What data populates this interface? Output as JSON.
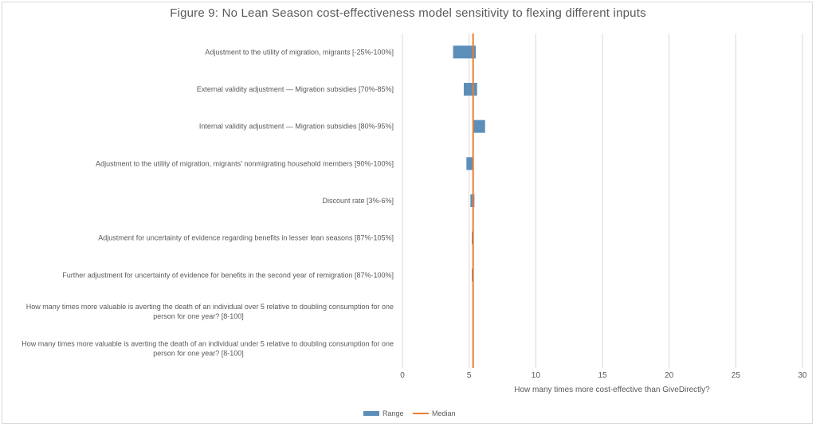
{
  "chart_data": {
    "type": "bar",
    "title": "Figure 9: No Lean Season cost-effectiveness model sensitivity to flexing different inputs",
    "xlabel": "How many times more cost-effective  than GiveDirectly?",
    "xlim": [
      0,
      30
    ],
    "xticks": [
      "0",
      "5",
      "10",
      "15",
      "20",
      "25",
      "30"
    ],
    "median": 5.3,
    "categories": [
      "Adjustment to the utility of migration, migrants [-25%-100%]",
      "External validity adjustment — Migration subsidies [70%-85%]",
      "Internal validity adjustment — Migration subsidies [80%-95%]",
      "Adjustment to the utility of migration, migrants' nonmigrating household members [90%-100%]",
      "Discount rate [3%-6%]",
      "Adjustment for uncertainty of evidence regarding benefits in lesser lean seasons [87%-105%]",
      "Further adjustment for uncertainty of evidence for benefits in the second year of remigration [87%-100%]",
      "How many times more valuable is averting the death of an individual over 5 relative to doubling consumption for one person for one year? [8-100]",
      "How many times more valuable is averting the death of an individual under 5 relative to doubling consumption for one person for one year? [8-100]"
    ],
    "category_lines": [
      [
        "Adjustment to the utility of migration, migrants [-25%-100%]"
      ],
      [
        "External validity adjustment — Migration subsidies [70%-85%]"
      ],
      [
        "Internal validity adjustment — Migration subsidies [80%-95%]"
      ],
      [
        "Adjustment to the utility of migration, migrants' nonmigrating household members [90%-100%]"
      ],
      [
        "Discount rate [3%-6%]"
      ],
      [
        "Adjustment for uncertainty of evidence regarding benefits in lesser lean seasons [87%-105%]"
      ],
      [
        "Further adjustment for uncertainty of evidence for benefits in the second year of remigration [87%-100%]"
      ],
      [
        "How many times more valuable is averting the death of an individual over 5 relative to doubling consumption for one",
        "person for one year? [8-100]"
      ],
      [
        "How many times more valuable is averting the death of an individual under 5 relative to doubling consumption for one",
        "person for one year? [8-100]"
      ]
    ],
    "series": [
      {
        "name": "Range",
        "low": [
          3.8,
          4.6,
          5.3,
          4.8,
          5.1,
          5.2,
          5.2,
          5.3,
          5.3
        ],
        "high": [
          5.5,
          5.6,
          6.2,
          5.3,
          5.4,
          5.3,
          5.3,
          5.3,
          5.3
        ]
      },
      {
        "name": "Median"
      }
    ],
    "colors": {
      "range": "#5b8fb9",
      "median": "#ed7d31",
      "grid": "#d9d9d9",
      "text": "#595959"
    },
    "grid": true,
    "legend_position": "bottom"
  }
}
